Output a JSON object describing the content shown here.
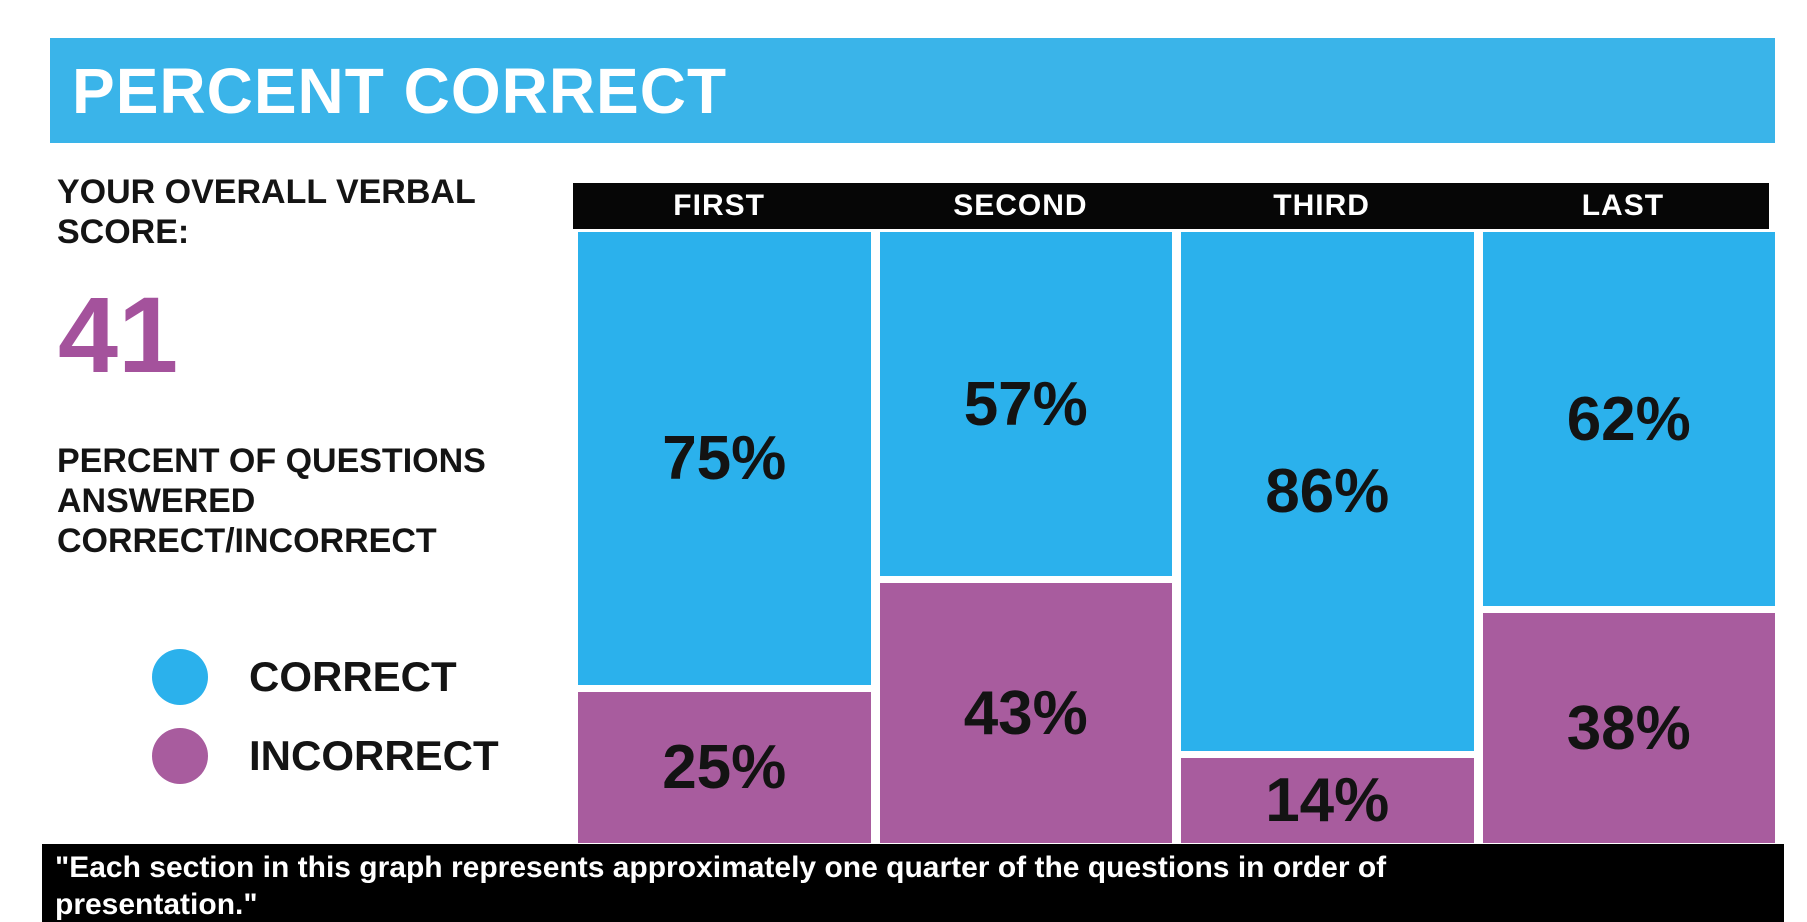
{
  "title": {
    "text": "PERCENT CORRECT"
  },
  "left_panel": {
    "overall_label": "YOUR OVERALL VERBAL SCORE:",
    "score": "41",
    "detail_label": "PERCENT OF QUESTIONS ANSWERED CORRECT/INCORRECT",
    "legend": [
      {
        "label": "CORRECT",
        "color": "#2bb1ec"
      },
      {
        "label": "INCORRECT",
        "color": "#a85c9e"
      }
    ]
  },
  "chart_data": {
    "type": "bar",
    "subtype": "stacked-100-percent-columns",
    "title": "PERCENT CORRECT",
    "categories": [
      "FIRST",
      "SECOND",
      "THIRD",
      "LAST"
    ],
    "series": [
      {
        "name": "CORRECT",
        "color": "#2bb1ec",
        "values": [
          75,
          57,
          86,
          62
        ]
      },
      {
        "name": "INCORRECT",
        "color": "#a85c9e",
        "values": [
          25,
          43,
          14,
          38
        ]
      }
    ],
    "value_suffix": "%",
    "ylim": [
      0,
      100
    ],
    "grid": false,
    "legend_position": "left",
    "category_header_background": "#060606",
    "category_header_text_color": "#ffffff"
  },
  "footer": {
    "lines": [
      "\"Each section in this graph represents approximately one quarter of the questions in order of",
      "presentation.\""
    ]
  },
  "colors": {
    "banner_blue": "#3ab4e9",
    "correct_blue": "#2bb1ec",
    "incorrect_purple": "#a85c9e",
    "score_purple": "#a4529c",
    "band_black": "#060606",
    "label_black": "#131313"
  }
}
